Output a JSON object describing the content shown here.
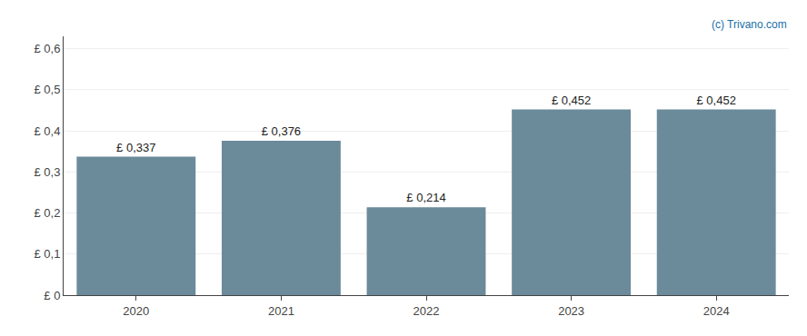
{
  "chart_data": {
    "type": "bar",
    "categories": [
      "2020",
      "2021",
      "2022",
      "2023",
      "2024"
    ],
    "values": [
      0.337,
      0.376,
      0.214,
      0.452,
      0.452
    ],
    "value_labels": [
      "£ 0,337",
      "£ 0,376",
      "£ 0,214",
      "£ 0,452",
      "£ 0,452"
    ],
    "color": "#6b8a9a",
    "ylim": [
      0,
      0.63
    ],
    "yticks": [
      {
        "value": 0.0,
        "label": "£ 0"
      },
      {
        "value": 0.1,
        "label": "£ 0,1"
      },
      {
        "value": 0.2,
        "label": "£ 0,2"
      },
      {
        "value": 0.3,
        "label": "£ 0,3"
      },
      {
        "value": 0.4,
        "label": "£ 0,4"
      },
      {
        "value": 0.5,
        "label": "£ 0,5"
      },
      {
        "value": 0.6,
        "label": "£ 0,6"
      }
    ],
    "grid": true,
    "data_labels": true,
    "annotations": [
      "(c) Trivano.com"
    ]
  }
}
